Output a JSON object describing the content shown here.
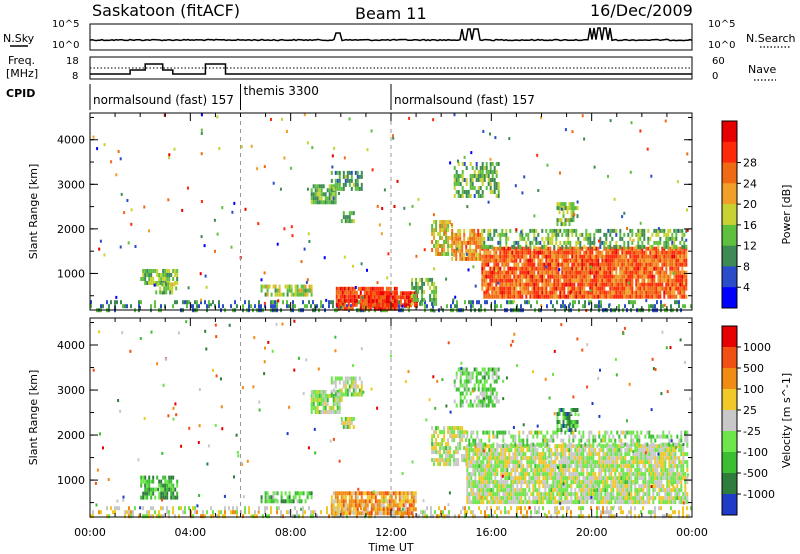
{
  "header": {
    "station": "Saskatoon (fitACF)",
    "beam": "Beam 11",
    "date": "16/Dec/2009"
  },
  "top_panels": {
    "nsky_label": "N.Sky",
    "nsky_top": "10^5",
    "nsky_bottom": "10^0",
    "nsearch_label": "N.Search",
    "nsearch_top": "10^5",
    "nsearch_bottom": "10^0",
    "freq_label_1": "Freq.",
    "freq_label_2": "[MHz]",
    "freq_top": "18",
    "freq_bottom": "8",
    "nave_label": "Nave",
    "nave_top": "60",
    "nave_bottom": "0",
    "cpid_label": "CPID"
  },
  "cpid_segments": [
    {
      "name": "normalsound (fast) 157",
      "start_h": 0,
      "end_h": 6
    },
    {
      "name": "themis 3300",
      "start_h": 6,
      "end_h": 12
    },
    {
      "name": "normalsound (fast) 157",
      "start_h": 12,
      "end_h": 24
    }
  ],
  "time_axis": {
    "label": "Time UT",
    "ticks": [
      "00:00",
      "04:00",
      "08:00",
      "12:00",
      "16:00",
      "20:00",
      "00:00"
    ],
    "range_h": [
      0,
      24
    ]
  },
  "chart_data": [
    {
      "type": "heatmap",
      "title": "Power",
      "ylabel": "Slant Range [km]",
      "ylim": [
        180,
        4600
      ],
      "yticks": [
        "1000",
        "2000",
        "3000",
        "4000"
      ],
      "colorbar_label": "Power [dB]",
      "colorbar_ticks": [
        "4",
        "8",
        "12",
        "16",
        "20",
        "24",
        "28"
      ],
      "colorbar_colors": [
        "#0000ff",
        "#2b4cc8",
        "#3d8a55",
        "#5fbf3e",
        "#c8d232",
        "#f0a028",
        "#f06a14",
        "#ff2a0a",
        "#e60000"
      ],
      "regions": [
        {
          "t0": 0.0,
          "t1": 24.0,
          "r0": 200,
          "r1": 400,
          "level": 0.25,
          "density": 0.35
        },
        {
          "t0": 2.0,
          "t1": 3.5,
          "r0": 800,
          "r1": 1100,
          "level": 0.4,
          "density": 0.7
        },
        {
          "t0": 2.6,
          "t1": 3.4,
          "r0": 600,
          "r1": 800,
          "level": 0.45,
          "density": 0.7
        },
        {
          "t0": 6.8,
          "t1": 8.8,
          "r0": 500,
          "r1": 750,
          "level": 0.45,
          "density": 0.7
        },
        {
          "t0": 8.8,
          "t1": 9.8,
          "r0": 2600,
          "r1": 3000,
          "level": 0.35,
          "density": 0.8
        },
        {
          "t0": 9.6,
          "t1": 10.8,
          "r0": 2900,
          "r1": 3300,
          "level": 0.3,
          "density": 0.7
        },
        {
          "t0": 10.0,
          "t1": 10.5,
          "r0": 2150,
          "r1": 2400,
          "level": 0.35,
          "density": 0.7
        },
        {
          "t0": 9.8,
          "t1": 12.2,
          "r0": 250,
          "r1": 700,
          "level": 0.85,
          "density": 0.9
        },
        {
          "t0": 11.0,
          "t1": 13.0,
          "r0": 300,
          "r1": 600,
          "level": 0.85,
          "density": 0.85
        },
        {
          "t0": 12.8,
          "t1": 13.8,
          "r0": 350,
          "r1": 900,
          "level": 0.35,
          "density": 0.6
        },
        {
          "t0": 13.6,
          "t1": 14.4,
          "r0": 1400,
          "r1": 2200,
          "level": 0.55,
          "density": 0.75
        },
        {
          "t0": 14.4,
          "t1": 15.6,
          "r0": 1300,
          "r1": 2000,
          "level": 0.65,
          "density": 0.85
        },
        {
          "t0": 15.6,
          "t1": 23.8,
          "r0": 500,
          "r1": 1600,
          "level": 0.78,
          "density": 0.92
        },
        {
          "t0": 15.6,
          "t1": 23.8,
          "r0": 1600,
          "r1": 2000,
          "level": 0.35,
          "density": 0.55
        },
        {
          "t0": 14.5,
          "t1": 16.3,
          "r0": 2700,
          "r1": 3500,
          "level": 0.35,
          "density": 0.55
        },
        {
          "t0": 18.6,
          "t1": 19.4,
          "r0": 2150,
          "r1": 2600,
          "level": 0.4,
          "density": 0.6
        }
      ]
    },
    {
      "type": "heatmap",
      "title": "Velocity",
      "ylabel": "Slant Range [km]",
      "ylim": [
        180,
        4600
      ],
      "yticks": [
        "1000",
        "2000",
        "3000",
        "4000"
      ],
      "colorbar_label": "Velocity [m s^-1]",
      "colorbar_ticks": [
        "1000",
        "500",
        "100",
        "25",
        "-25",
        "-100",
        "-500",
        "-1000"
      ],
      "colorbar_colors": [
        "#1e3cc8",
        "#2f7d3c",
        "#3cbe32",
        "#6ee64b",
        "#c8c8c8",
        "#f0c828",
        "#f08c14",
        "#f05014",
        "#e60000"
      ],
      "regions": [
        {
          "t0": 0.0,
          "t1": 24.0,
          "r0": 200,
          "r1": 420,
          "level": 0.55,
          "density": 0.4
        },
        {
          "t0": 2.0,
          "t1": 3.5,
          "r0": 600,
          "r1": 1100,
          "level": 0.25,
          "density": 0.7
        },
        {
          "t0": 6.8,
          "t1": 8.8,
          "r0": 500,
          "r1": 750,
          "level": 0.3,
          "density": 0.6
        },
        {
          "t0": 8.8,
          "t1": 10.0,
          "r0": 2500,
          "r1": 3000,
          "level": 0.45,
          "density": 0.8
        },
        {
          "t0": 9.6,
          "t1": 10.8,
          "r0": 2900,
          "r1": 3300,
          "level": 0.45,
          "density": 0.7
        },
        {
          "t0": 10.0,
          "t1": 10.5,
          "r0": 2150,
          "r1": 2400,
          "level": 0.45,
          "density": 0.7
        },
        {
          "t0": 9.6,
          "t1": 13.0,
          "r0": 300,
          "r1": 750,
          "level": 0.7,
          "density": 0.85
        },
        {
          "t0": 13.6,
          "t1": 15.0,
          "r0": 1400,
          "r1": 2200,
          "level": 0.48,
          "density": 0.75
        },
        {
          "t0": 15.0,
          "t1": 23.8,
          "r0": 500,
          "r1": 1800,
          "level": 0.48,
          "density": 0.88
        },
        {
          "t0": 15.0,
          "t1": 23.8,
          "r0": 1800,
          "r1": 2100,
          "level": 0.4,
          "density": 0.5
        },
        {
          "t0": 14.5,
          "t1": 16.3,
          "r0": 2700,
          "r1": 3500,
          "level": 0.35,
          "density": 0.55
        },
        {
          "t0": 18.6,
          "t1": 19.4,
          "r0": 2150,
          "r1": 2600,
          "level": 0.2,
          "density": 0.6
        }
      ]
    }
  ]
}
